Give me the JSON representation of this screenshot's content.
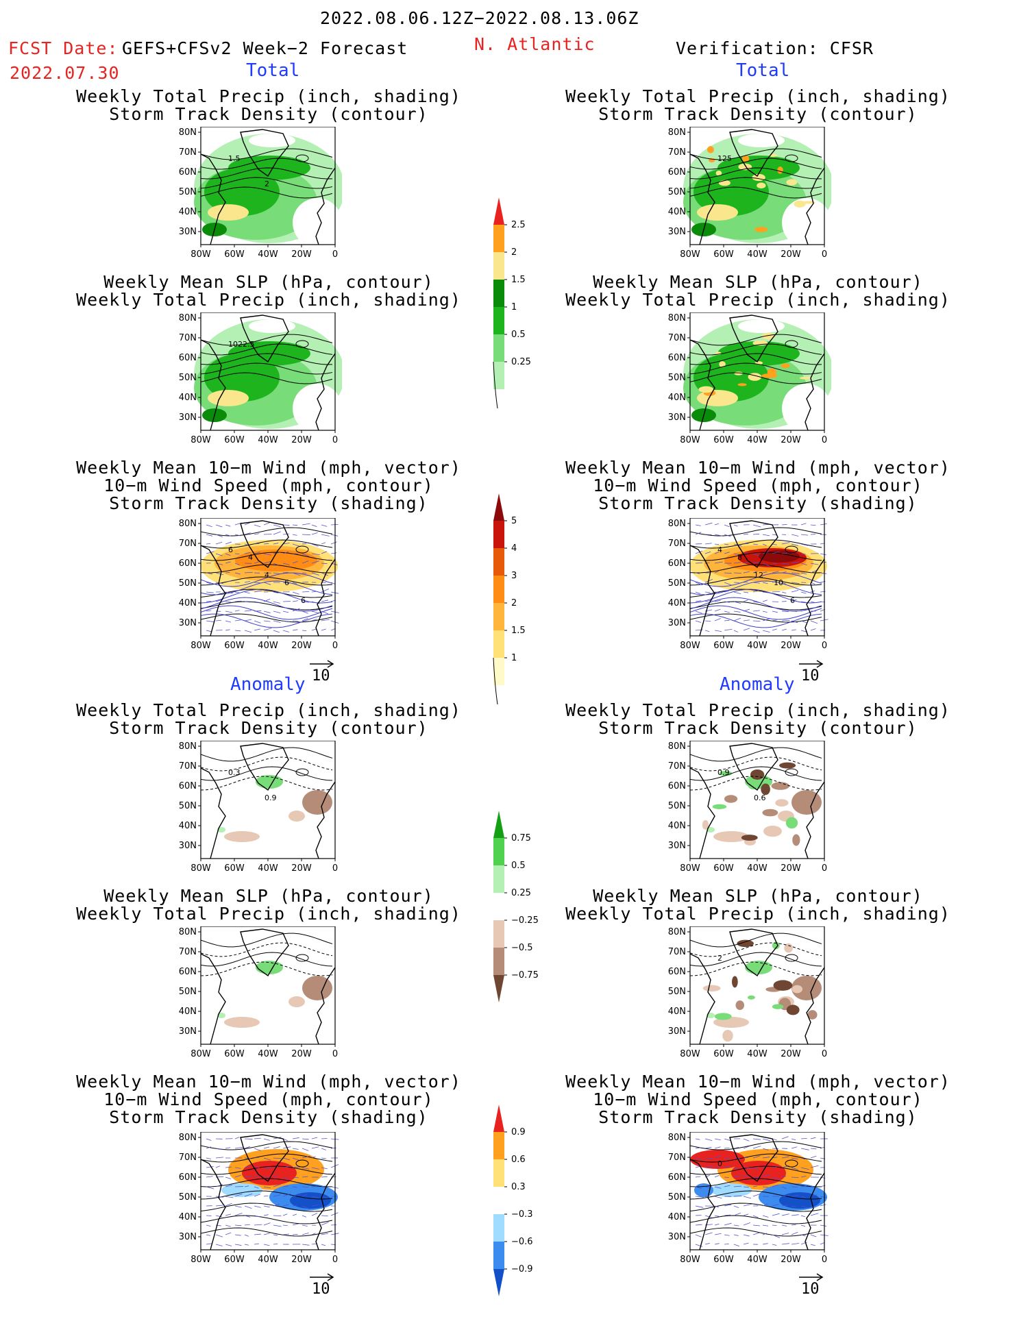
{
  "header": {
    "date_range": "2022.08.06.12Z−2022.08.13.06Z",
    "fcst_label": "FCST Date:",
    "model": "GEFS+CFSv2 Week−2 Forecast",
    "fcst_date": "2022.07.30",
    "region": "N. Atlantic",
    "verification": "Verification: CFSR"
  },
  "sections": {
    "total": "Total",
    "anomaly": "Anomaly"
  },
  "titles": {
    "precip_track": [
      "Weekly Total Precip (inch, shading)",
      "Storm Track Density (contour)"
    ],
    "slp_precip": [
      "Weekly Mean SLP (hPa, contour)",
      "Weekly Total Precip (inch, shading)"
    ],
    "wind": [
      "Weekly Mean 10−m Wind (mph, vector)",
      "10−m Wind Speed (mph, contour)",
      "Storm Track Density (shading)"
    ]
  },
  "axes": {
    "lat_labels": [
      "80N",
      "70N",
      "60N",
      "50N",
      "40N",
      "30N"
    ],
    "lon_labels": [
      "80W",
      "60W",
      "40W",
      "20W",
      "0"
    ]
  },
  "vector_ref": "10",
  "colorbars": {
    "precip_total": [
      "2.5",
      "2",
      "1.5",
      "1",
      "0.5",
      "0.25"
    ],
    "track_total": [
      "5",
      "4",
      "3",
      "2",
      "1.5",
      "1"
    ],
    "precip_anom": [
      "0.75",
      "0.5",
      "0.25",
      "−0.25",
      "−0.5",
      "−0.75"
    ],
    "track_anom": [
      "0.9",
      "0.6",
      "0.3",
      "−0.3",
      "−0.6",
      "−0.9"
    ]
  },
  "contour_labels": {
    "p1_left": [
      "1.5",
      "2"
    ],
    "p1_right": [
      "125"
    ],
    "p2_left": [
      "1022.5"
    ],
    "p3_left": [
      "6",
      "4",
      "6",
      "4",
      "6"
    ],
    "p3_right": [
      "4",
      "12",
      "6",
      "8",
      "10"
    ],
    "p4_left": [
      "0.3",
      "0.9"
    ],
    "p4_right": [
      "0.9",
      "0.6"
    ],
    "p5_right": [
      "2"
    ],
    "p6_right": [
      "0"
    ]
  },
  "colors": {
    "precip": [
      "#b4f0b4",
      "#78dc78",
      "#1eb41e",
      "#0a8c0a",
      "#fae68c",
      "#ffa01e",
      "#e8231f"
    ],
    "track": [
      "#fffac8",
      "#ffe178",
      "#ffb43c",
      "#ff8c14",
      "#e65a0a",
      "#c8140a",
      "#8c0a0a"
    ],
    "anom_neg": [
      "#e6c8b4",
      "#b48c78",
      "#6e4632"
    ],
    "wind_neg": [
      "#a0dcff",
      "#3c8cf0",
      "#1450c8"
    ]
  }
}
